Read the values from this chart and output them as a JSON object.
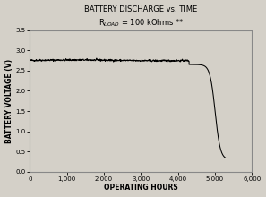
{
  "title_line1": "BATTERY DISCHARGE vs. TIME",
  "title_line2": "R$_{LOAD}$ = 100 kOhms **",
  "xlabel": "OPERATING HOURS",
  "ylabel": "BATTERY VOLTAGE (V)",
  "xlim": [
    0,
    6000
  ],
  "ylim": [
    0,
    3.5
  ],
  "xticks": [
    0,
    1000,
    2000,
    3000,
    4000,
    5000,
    6000
  ],
  "yticks": [
    0.0,
    0.5,
    1.0,
    1.5,
    2.0,
    2.5,
    3.0,
    3.5
  ],
  "line_color": "#000000",
  "background_color": "#d4d0c8",
  "plot_bg_color": "#d4d0c8",
  "figsize": [
    2.97,
    2.2
  ],
  "dpi": 100,
  "flat_voltage": 2.75,
  "drop_start": 4300,
  "drop_end": 5280,
  "end_voltage": 0.3
}
